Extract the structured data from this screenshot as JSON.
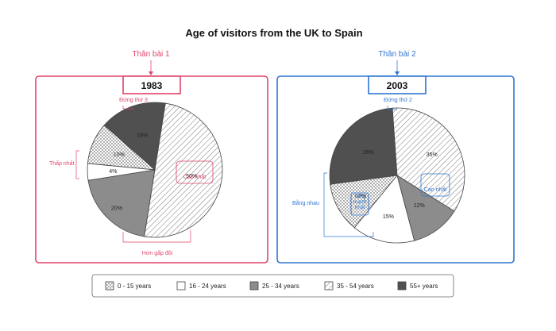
{
  "title": "Age of visitors from the UK to Spain",
  "colors": {
    "red": "#e0456a",
    "blue": "#2f76d2"
  },
  "panels": [
    {
      "label": "Thân bài 1"
    },
    {
      "label": "Thân bài 2"
    }
  ],
  "chart_data": [
    {
      "type": "pie",
      "title": "1983",
      "categories": [
        "0 - 15 years",
        "16 - 24 years",
        "25 - 34 years",
        "35 - 54 years",
        "55+ years"
      ],
      "values": [
        10,
        4,
        20,
        50,
        16
      ],
      "labels": [
        "10%",
        "4%",
        "20%",
        "50%",
        "16%"
      ],
      "annotations": {
        "highest": "Cao nhất",
        "lowest": "Thấp nhất",
        "second": "Đứng thứ 3",
        "more_than_double": "Hơn gấp đôi"
      }
    },
    {
      "type": "pie",
      "title": "2003",
      "categories": [
        "0 - 15 years",
        "16 - 24 years",
        "25 - 34 years",
        "35 - 54 years",
        "55+ years"
      ],
      "values": [
        12,
        15,
        12,
        35,
        26
      ],
      "labels": [
        "12%",
        "15%",
        "12%",
        "35%",
        "26%"
      ],
      "annotations": {
        "highest": "Cao nhất",
        "increase": "Tăng mạnh nhất",
        "equal": "Bằng nhau",
        "second": "Đứng thứ 2"
      }
    }
  ],
  "legend": [
    {
      "label": "0 - 15 years",
      "pattern": "dots"
    },
    {
      "label": "16 - 24 years",
      "pattern": "white"
    },
    {
      "label": "25 - 34 years",
      "pattern": "gray"
    },
    {
      "label": "35 - 54 years",
      "pattern": "hatch"
    },
    {
      "label": "55+ years",
      "pattern": "dark"
    }
  ]
}
